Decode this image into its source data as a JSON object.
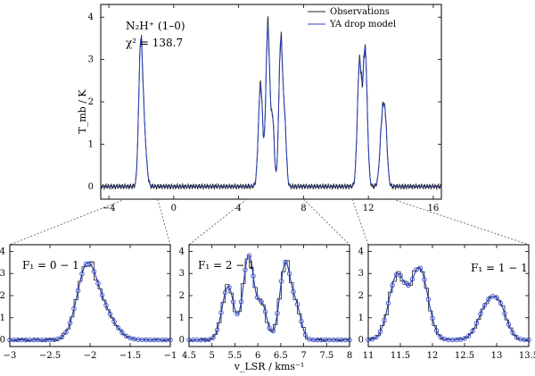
{
  "colors": {
    "observations": "#222222",
    "model": "#2b3fb8"
  },
  "chart_data": [
    {
      "id": "main",
      "type": "line",
      "title": "",
      "annotation_line1": "N₂H⁺ (1–0)",
      "annotation_line2": "χ² = 138.7",
      "xlabel": "",
      "ylabel": "T_mb / K",
      "xlim": [
        -4.5,
        16.5
      ],
      "ylim": [
        -0.3,
        4.3
      ],
      "xticks": [
        -4,
        0,
        4,
        8,
        12,
        16
      ],
      "xtick_labels": [
        "−4",
        "0",
        "4",
        "8",
        "12",
        "16"
      ],
      "yticks": [
        0,
        1,
        2,
        3,
        4
      ],
      "ytick_labels": [
        "0",
        "1",
        "2",
        "3",
        "4"
      ],
      "legend": [
        {
          "label": "Observations",
          "series": "observations"
        },
        {
          "label": "YA drop model",
          "series": "model"
        }
      ],
      "components": [
        {
          "center": -2.05,
          "amp": 2.9,
          "width": 0.12
        },
        {
          "center": -1.85,
          "amp": 1.3,
          "width": 0.15
        },
        {
          "center": 5.35,
          "amp": 2.4,
          "width": 0.13
        },
        {
          "center": 5.8,
          "amp": 3.8,
          "width": 0.12
        },
        {
          "center": 6.1,
          "amp": 1.5,
          "width": 0.1
        },
        {
          "center": 6.6,
          "amp": 3.45,
          "width": 0.12
        },
        {
          "center": 6.85,
          "amp": 1.3,
          "width": 0.1
        },
        {
          "center": 11.45,
          "amp": 2.9,
          "width": 0.13
        },
        {
          "center": 11.8,
          "amp": 3.2,
          "width": 0.13
        },
        {
          "center": 12.85,
          "amp": 1.45,
          "width": 0.14
        },
        {
          "center": 13.05,
          "amp": 1.2,
          "width": 0.12
        }
      ]
    },
    {
      "id": "zoom-1",
      "type": "line",
      "annotation": "F₁ = 0 − 1",
      "annotation_position": "top-left",
      "xlim": [
        -3,
        -1
      ],
      "ylim": [
        -0.3,
        4.3
      ],
      "xticks": [
        -3,
        -2.5,
        -2,
        -1.5,
        -1
      ],
      "xtick_labels": [
        "−3",
        "−2.5",
        "−2",
        "−1.5",
        "−1"
      ],
      "yticks": [
        0,
        1,
        2,
        3,
        4
      ],
      "ytick_labels": [
        "0",
        "1",
        "2",
        "3",
        "4"
      ],
      "zoom_range": [
        -3,
        -1
      ]
    },
    {
      "id": "zoom-2",
      "type": "line",
      "annotation": "F₁ = 2 − 1",
      "annotation_position": "top-left",
      "xlim": [
        4.5,
        8
      ],
      "ylim": [
        -0.3,
        4.3
      ],
      "xticks": [
        4.5,
        5,
        5.5,
        6,
        6.5,
        7,
        7.5,
        8
      ],
      "xtick_labels": [
        "4.5",
        "5",
        "5.5",
        "6",
        "6.5",
        "7",
        "7.5",
        "8"
      ],
      "yticks": [
        0,
        1,
        2,
        3,
        4
      ],
      "ytick_labels": [
        "0",
        "1",
        "2",
        "3",
        "4"
      ],
      "zoom_range": [
        4.5,
        8
      ]
    },
    {
      "id": "zoom-3",
      "type": "line",
      "annotation": "F₁ = 1 − 1",
      "annotation_position": "top-right",
      "xlim": [
        11,
        13.5
      ],
      "ylim": [
        -0.3,
        4.3
      ],
      "xticks": [
        11,
        11.5,
        12,
        12.5,
        13,
        13.5
      ],
      "xtick_labels": [
        "11",
        "11.5",
        "12",
        "12.5",
        "13",
        "13.5"
      ],
      "yticks": [
        0,
        1,
        2,
        3,
        4
      ],
      "ytick_labels": [
        "0",
        "1",
        "2",
        "3",
        "4"
      ],
      "zoom_range": [
        11,
        13.5
      ]
    }
  ],
  "shared_xlabel": "v_LSR / kms⁻¹"
}
